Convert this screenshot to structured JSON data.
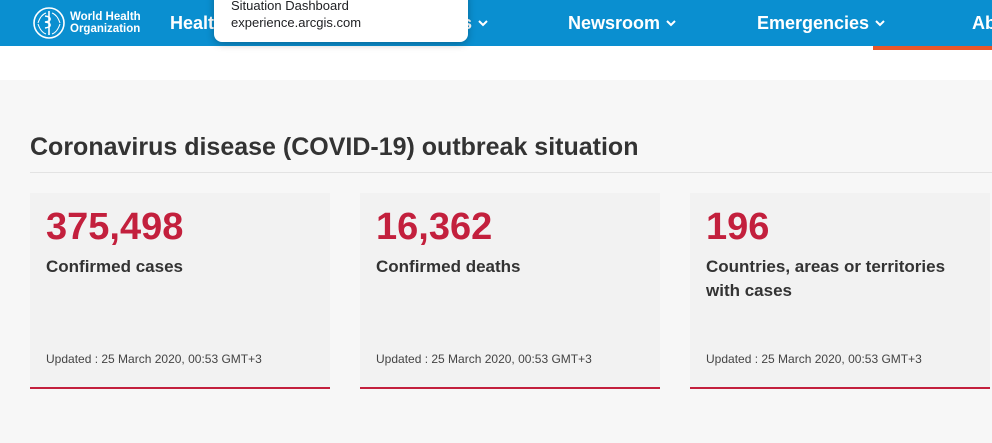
{
  "header": {
    "logo_text_line1": "World Health",
    "logo_text_line2": "Organization",
    "nav": [
      {
        "label": "Healt"
      },
      {
        "label": "s"
      },
      {
        "label": "Newsroom"
      },
      {
        "label": "Emergencies"
      },
      {
        "label": "Ab"
      }
    ]
  },
  "tooltip": {
    "title": "Situation Dashboard",
    "url": "experience.arcgis.com"
  },
  "main": {
    "title": "Coronavirus disease (COVID-19) outbreak situation",
    "cards": [
      {
        "value": "375,498",
        "label": "Confirmed cases",
        "updated": "Updated : 25 March 2020, 00:53 GMT+3"
      },
      {
        "value": "16,362",
        "label": "Confirmed deaths",
        "updated": "Updated : 25 March 2020, 00:53 GMT+3"
      },
      {
        "value": "196",
        "label": "Countries, areas or territories with cases",
        "updated": "Updated : 25 March 2020, 00:53 GMT+3"
      }
    ]
  },
  "colors": {
    "nav_bg": "#0a8fd0",
    "accent_red": "#c3203d",
    "active_orange": "#e8562a"
  }
}
